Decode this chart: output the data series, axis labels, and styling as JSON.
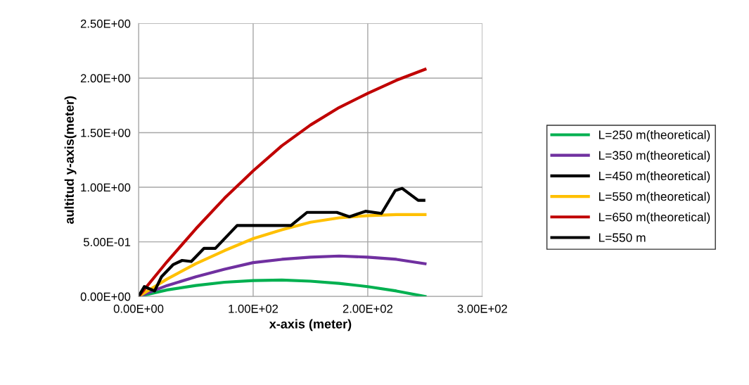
{
  "chart_data": {
    "type": "line",
    "xlabel": "x-axis (meter)",
    "ylabel": "aultitud y-axis(meter)",
    "x": [
      0,
      25,
      50,
      75,
      100,
      125,
      150,
      175,
      200,
      225,
      250
    ],
    "series": [
      {
        "name": "L=250 m(theoretical)",
        "color": "#00b050",
        "values": [
          0,
          0.06,
          0.1,
          0.13,
          0.145,
          0.15,
          0.14,
          0.12,
          0.09,
          0.05,
          0
        ]
      },
      {
        "name": "L=350 m(theoretical)",
        "color": "#7030a0",
        "values": [
          0,
          0.1,
          0.18,
          0.25,
          0.31,
          0.34,
          0.36,
          0.37,
          0.36,
          0.34,
          0.3
        ]
      },
      {
        "name": "L=450 m(theoretical)",
        "color": "#000000",
        "values": [
          null,
          null,
          null,
          null,
          null,
          null,
          null,
          null,
          null,
          null,
          null
        ]
      },
      {
        "name": "L=550 m(theoretical)",
        "color": "#ffc000",
        "values": [
          0,
          0.16,
          0.3,
          0.42,
          0.53,
          0.61,
          0.68,
          0.72,
          0.74,
          0.75,
          0.75
        ]
      },
      {
        "name": "L=650 m(theoretical)",
        "color": "#c00000",
        "values": [
          0,
          0.32,
          0.62,
          0.9,
          1.15,
          1.38,
          1.57,
          1.73,
          1.86,
          1.98,
          2.08
        ]
      },
      {
        "name": "L=550 m",
        "color": "#000000",
        "x": [
          0,
          5,
          14,
          20,
          30,
          38,
          46,
          57,
          67,
          86,
          98,
          133,
          147,
          173,
          184,
          198,
          212,
          224,
          230,
          244,
          249
        ],
        "values": [
          0,
          0.09,
          0.05,
          0.18,
          0.29,
          0.33,
          0.32,
          0.44,
          0.44,
          0.65,
          0.65,
          0.65,
          0.77,
          0.77,
          0.73,
          0.78,
          0.76,
          0.97,
          0.99,
          0.88,
          0.88
        ]
      }
    ],
    "xlim": [
      0,
      300
    ],
    "xticks": [
      {
        "value": 0,
        "label": "0.00E+00"
      },
      {
        "value": 100,
        "label": "1.00E+02"
      },
      {
        "value": 200,
        "label": "2.00E+02"
      },
      {
        "value": 300,
        "label": "3.00E+02"
      }
    ],
    "ylim": [
      0,
      2.5
    ],
    "yticks": [
      {
        "value": 0,
        "label": "0.00E+00"
      },
      {
        "value": 0.5,
        "label": "5.00E-01"
      },
      {
        "value": 1,
        "label": "1.00E+00"
      },
      {
        "value": 1.5,
        "label": "1.50E+00"
      },
      {
        "value": 2,
        "label": "2.00E+00"
      },
      {
        "value": 2.5,
        "label": "2.50E+00"
      }
    ],
    "grid": true,
    "legend": "right",
    "marker": "none",
    "line_style": "solid"
  }
}
